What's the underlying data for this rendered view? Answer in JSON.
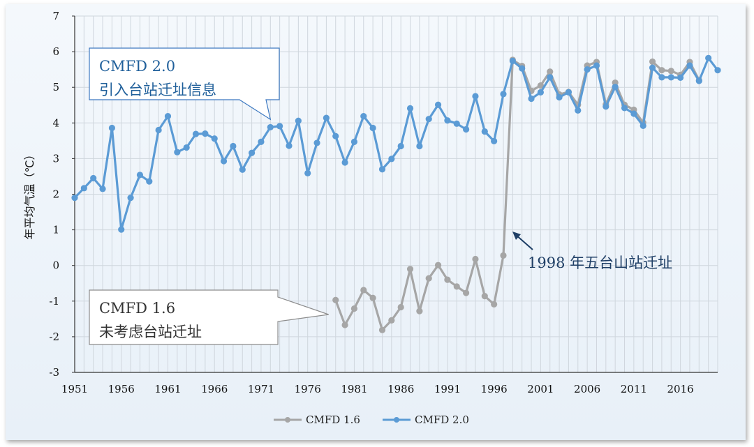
{
  "chart_data": {
    "type": "line",
    "ylabel": "年平均气温（℃）",
    "ylim": [
      -3,
      7
    ],
    "yticks": [
      7,
      6,
      5,
      4,
      3,
      2,
      1,
      0,
      -1,
      -2,
      -3
    ],
    "xlim": [
      1951,
      2020
    ],
    "xticks": [
      1951,
      1956,
      1961,
      1966,
      1971,
      1976,
      1981,
      1986,
      1991,
      1996,
      2001,
      2006,
      2011,
      2016
    ],
    "grid": true,
    "legend": "bottom",
    "series": [
      {
        "name": "CMFD 1.6",
        "color": "#a6a6a6",
        "x": [
          1979,
          1980,
          1981,
          1982,
          1983,
          1984,
          1985,
          1986,
          1987,
          1988,
          1989,
          1990,
          1991,
          1992,
          1993,
          1994,
          1995,
          1996,
          1997,
          1998,
          1999,
          2000,
          2001,
          2002,
          2003,
          2004,
          2005,
          2006,
          2007,
          2008,
          2009,
          2010,
          2011,
          2012,
          2013,
          2014,
          2015,
          2016,
          2017,
          2018
        ],
        "y": [
          -0.97,
          -1.67,
          -1.21,
          -0.69,
          -0.91,
          -1.81,
          -1.54,
          -1.17,
          -0.1,
          -1.28,
          -0.36,
          0.01,
          -0.4,
          -0.59,
          -0.77,
          0.18,
          -0.86,
          -1.09,
          0.28,
          5.77,
          5.6,
          4.9,
          5.05,
          5.44,
          4.8,
          4.87,
          4.51,
          5.61,
          5.71,
          4.52,
          5.13,
          4.51,
          4.37,
          4.01,
          5.72,
          5.48,
          5.46,
          5.35,
          5.71,
          5.2
        ]
      },
      {
        "name": "CMFD 2.0",
        "color": "#5b9bd5",
        "x": [
          1951,
          1952,
          1953,
          1954,
          1955,
          1956,
          1957,
          1958,
          1959,
          1960,
          1961,
          1962,
          1963,
          1964,
          1965,
          1966,
          1967,
          1968,
          1969,
          1970,
          1971,
          1972,
          1973,
          1974,
          1975,
          1976,
          1977,
          1978,
          1979,
          1980,
          1981,
          1982,
          1983,
          1984,
          1985,
          1986,
          1987,
          1988,
          1989,
          1990,
          1991,
          1992,
          1993,
          1994,
          1995,
          1996,
          1997,
          1998,
          1999,
          2000,
          2001,
          2002,
          2003,
          2004,
          2005,
          2006,
          2007,
          2008,
          2009,
          2010,
          2011,
          2012,
          2013,
          2014,
          2015,
          2016,
          2017,
          2018,
          2019,
          2020
        ],
        "y": [
          1.9,
          2.17,
          2.45,
          2.15,
          3.86,
          1.01,
          1.9,
          2.54,
          2.36,
          3.8,
          4.19,
          3.18,
          3.31,
          3.69,
          3.7,
          3.56,
          2.93,
          3.35,
          2.69,
          3.16,
          3.47,
          3.88,
          3.91,
          3.36,
          4.06,
          2.59,
          3.44,
          4.14,
          3.63,
          2.89,
          3.47,
          4.19,
          3.86,
          2.7,
          2.99,
          3.35,
          4.41,
          3.35,
          4.11,
          4.51,
          4.07,
          3.98,
          3.82,
          4.75,
          3.76,
          3.49,
          4.81,
          5.74,
          5.53,
          4.68,
          4.86,
          5.28,
          4.72,
          4.86,
          4.35,
          5.5,
          5.61,
          4.46,
          5.01,
          4.42,
          4.26,
          3.92,
          5.55,
          5.28,
          5.28,
          5.27,
          5.61,
          5.18,
          5.82,
          5.48
        ]
      }
    ],
    "annotations": [
      {
        "lines": [
          "CMFD 2.0",
          "引入台站迁址信息"
        ],
        "target": [
          1972,
          4.1
        ]
      },
      {
        "lines": [
          "CMFD 1.6",
          "未考虑台站迁址"
        ],
        "target": [
          1979,
          -1.22
        ]
      },
      {
        "text": "1998 年五台山站迁址",
        "target": [
          1997.8,
          1.0
        ]
      }
    ]
  }
}
